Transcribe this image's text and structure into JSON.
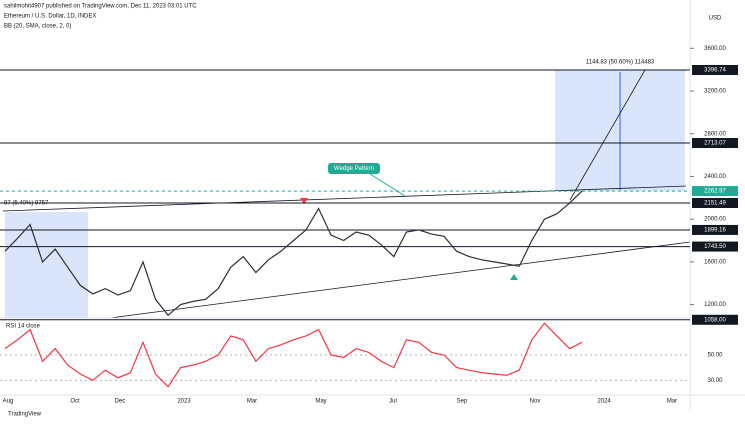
{
  "header": {
    "line1": "sahilmohit4907 published on TradingView.com, Dec 11, 2023 03:01 UTC",
    "line2": "Ethereum / U.S. Dollar, 1D, INDEX",
    "line3": "BB (20, SMA, close, 2, 0)"
  },
  "chart_data": {
    "type": "line",
    "unit": "USD",
    "series": [
      {
        "name": "ETHUSD",
        "color": "#2a2e39",
        "values": [
          1700,
          1820,
          1950,
          1600,
          1720,
          1550,
          1380,
          1300,
          1350,
          1290,
          1330,
          1600,
          1250,
          1100,
          1200,
          1230,
          1250,
          1350,
          1550,
          1650,
          1500,
          1620,
          1700,
          1800,
          1900,
          2100,
          1850,
          1800,
          1880,
          1850,
          1760,
          1650,
          1880,
          1900,
          1860,
          1840,
          1700,
          1650,
          1620,
          1600,
          1580,
          1560,
          1800,
          2000,
          2050,
          2150,
          2262.97
        ]
      }
    ],
    "ylim": [
      1000,
      3800
    ],
    "yticks": [
      {
        "value": 3600,
        "label": "3600.00"
      },
      {
        "value": 3200,
        "label": "3200.00"
      },
      {
        "value": 2800,
        "label": "2800.00"
      },
      {
        "value": 2400,
        "label": "2400.00"
      },
      {
        "value": 2000,
        "label": "2000.00"
      },
      {
        "value": 1600,
        "label": "1600.00"
      },
      {
        "value": 1200,
        "label": "1200.00"
      }
    ],
    "levels": [
      {
        "value": 3396.74,
        "label": "3396.74"
      },
      {
        "value": 2713.07,
        "label": "2713.07"
      },
      {
        "value": 2151.49,
        "label": "2151.49"
      },
      {
        "value": 1899.16,
        "label": "1899.16"
      },
      {
        "value": 1743.5,
        "label": "1743.50"
      },
      {
        "value": 1058,
        "label": "1058.00"
      }
    ],
    "last_price": {
      "value": 2262.97,
      "label": "2262.97"
    },
    "xlabels": [
      "Aug",
      "Oct",
      "Dec",
      "2023",
      "Mar",
      "May",
      "Jul",
      "Sep",
      "Nov",
      "2024",
      "Mar"
    ],
    "annotations": {
      "pattern": "Wedge Pattern",
      "target": "1144.83 (50.60%) 114483",
      "left_zone": "97 (5.40%) 9757"
    },
    "rsi": {
      "title": "RSI 14 close",
      "color": "#f23645",
      "values": [
        55,
        62,
        70,
        45,
        55,
        42,
        35,
        30,
        38,
        32,
        36,
        60,
        35,
        25,
        40,
        42,
        45,
        50,
        65,
        62,
        45,
        55,
        58,
        62,
        65,
        70,
        50,
        48,
        55,
        52,
        45,
        40,
        62,
        60,
        52,
        50,
        40,
        38,
        36,
        35,
        34,
        38,
        62,
        75,
        65,
        55,
        60
      ],
      "ylim": [
        20,
        76
      ],
      "yticks": [
        {
          "value": 50,
          "label": "50.00"
        },
        {
          "value": 30,
          "label": "30.00"
        }
      ]
    },
    "footer": "TradingView"
  }
}
